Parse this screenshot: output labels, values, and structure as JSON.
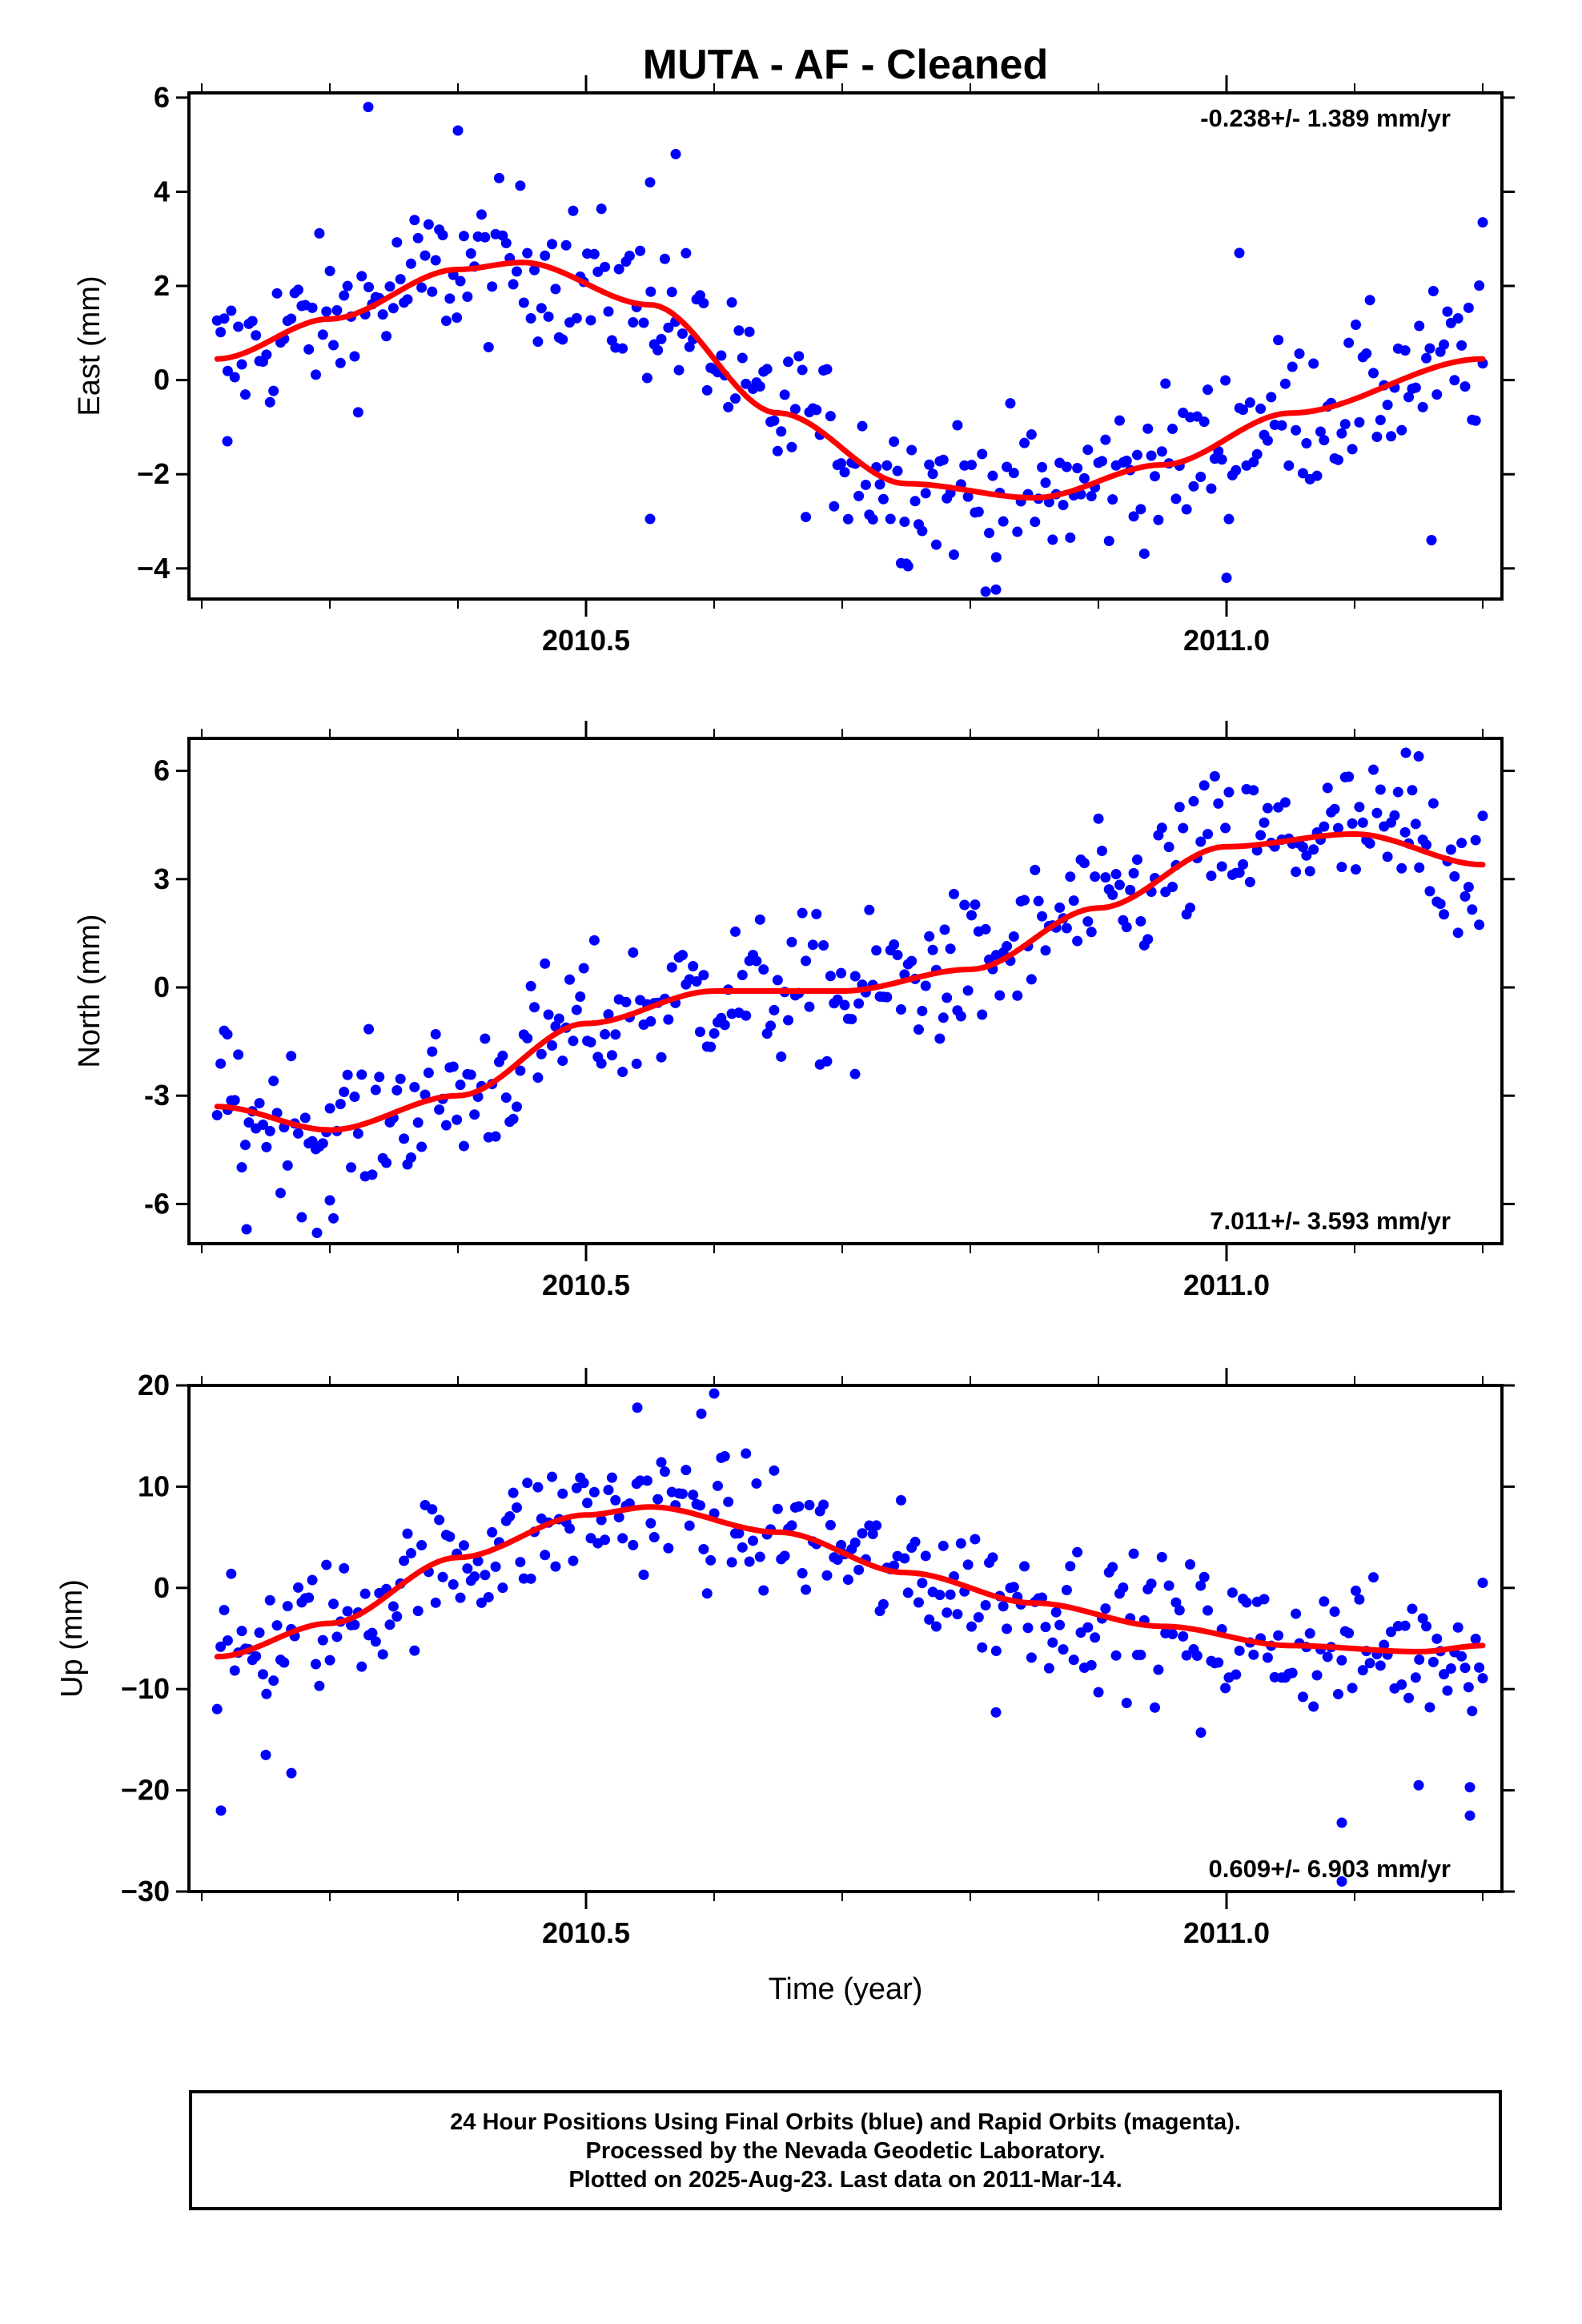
{
  "title": "MUTA  - AF - Cleaned",
  "footer": {
    "line1": "24 Hour Positions Using Final Orbits (blue) and Rapid Orbits (magenta).",
    "line2": "Processed by the Nevada Geodetic Laboratory.",
    "line3": "Plotted on 2025-Aug-23. Last data on 2011-Mar-14."
  },
  "colors": {
    "points": "#0000ff",
    "fit": "#ff0000",
    "axes": "#000000"
  },
  "chart_data": [
    {
      "type": "scatter",
      "ylabel": "East (mm)",
      "xlabel": "",
      "rate_label": "-0.238+/- 1.389 mm/yr",
      "rate_position": "top-right",
      "xlim": [
        2010.19,
        2011.215
      ],
      "ylim": [
        -4.65,
        6.1
      ],
      "xticks": [
        2010.5,
        2011.0
      ],
      "xtick_labels": [
        "2010.5",
        "2011.0"
      ],
      "yticks": [
        -4,
        -2,
        0,
        2,
        4,
        6
      ],
      "ytick_labels": [
        "−4",
        "−2",
        "0",
        "2",
        "4",
        "6"
      ],
      "x_start": 2010.212,
      "x_end": 2011.2,
      "n_points": 360,
      "fit": {
        "name": "trend",
        "x": [
          2010.212,
          2010.3,
          2010.4,
          2010.45,
          2010.55,
          2010.65,
          2010.75,
          2010.85,
          2010.95,
          2011.05,
          2011.2
        ],
        "y": [
          0.45,
          1.3,
          2.35,
          2.5,
          1.6,
          -0.7,
          -2.2,
          -2.5,
          -1.8,
          -0.7,
          0.45
        ]
      },
      "scatter_spread": 0.8,
      "outliers": [
        {
          "x": 2010.33,
          "y": 5.8
        },
        {
          "x": 2010.4,
          "y": 5.3
        },
        {
          "x": 2010.57,
          "y": 4.8
        },
        {
          "x": 2010.55,
          "y": 4.2
        },
        {
          "x": 2010.55,
          "y": -2.95
        },
        {
          "x": 2010.82,
          "y": -4.45
        },
        {
          "x": 2011.0,
          "y": -4.2
        },
        {
          "x": 2011.2,
          "y": 3.35
        },
        {
          "x": 2011.01,
          "y": 2.7
        },
        {
          "x": 2011.16,
          "y": -3.4
        },
        {
          "x": 2010.22,
          "y": -1.3
        },
        {
          "x": 2010.75,
          "y": -3.9
        }
      ]
    },
    {
      "type": "scatter",
      "ylabel": "North (mm)",
      "xlabel": "",
      "rate_label": "7.011+/- 3.593 mm/yr",
      "rate_position": "bottom-right",
      "xlim": [
        2010.19,
        2011.215
      ],
      "ylim": [
        -7.1,
        6.9
      ],
      "xticks": [
        2010.5,
        2011.0
      ],
      "xtick_labels": [
        "2010.5",
        "2011.0"
      ],
      "yticks": [
        -6,
        -3,
        0,
        3,
        6
      ],
      "ytick_labels": [
        "-6",
        "-3",
        "0",
        "3",
        "6"
      ],
      "x_start": 2010.212,
      "x_end": 2011.2,
      "n_points": 360,
      "fit": {
        "name": "trend",
        "x": [
          2010.212,
          2010.3,
          2010.4,
          2010.5,
          2010.6,
          2010.7,
          2010.8,
          2010.9,
          2011.0,
          2011.1,
          2011.2
        ],
        "y": [
          -3.3,
          -3.95,
          -3.0,
          -1.0,
          -0.1,
          -0.1,
          0.5,
          2.2,
          3.9,
          4.25,
          3.4
        ]
      },
      "scatter_spread": 1.0,
      "outliers": [
        {
          "x": 2010.235,
          "y": -6.7
        },
        {
          "x": 2010.29,
          "y": -6.8
        },
        {
          "x": 2010.3,
          "y": -5.9
        },
        {
          "x": 2011.14,
          "y": 6.5
        },
        {
          "x": 2011.15,
          "y": 6.4
        },
        {
          "x": 2010.78,
          "y": 1.6
        },
        {
          "x": 2010.22,
          "y": -1.3
        },
        {
          "x": 2010.71,
          "y": -2.4
        }
      ]
    },
    {
      "type": "scatter",
      "ylabel": "Up (mm)",
      "xlabel": "Time (year)",
      "rate_label": "0.609+/- 6.903 mm/yr",
      "rate_position": "bottom-right",
      "xlim": [
        2010.19,
        2011.215
      ],
      "ylim": [
        -30,
        20
      ],
      "xticks": [
        2010.5,
        2011.0
      ],
      "xtick_labels": [
        "2010.5",
        "2011.0"
      ],
      "yticks": [
        -30,
        -20,
        -10,
        0,
        10,
        20
      ],
      "ytick_labels": [
        "−30",
        "−20",
        "−10",
        "0",
        "10",
        "20"
      ],
      "x_start": 2010.212,
      "x_end": 2011.2,
      "n_points": 360,
      "fit": {
        "name": "trend",
        "x": [
          2010.212,
          2010.3,
          2010.4,
          2010.5,
          2010.55,
          2010.65,
          2010.75,
          2010.85,
          2010.95,
          2011.05,
          2011.15,
          2011.2
        ],
        "y": [
          -6.8,
          -3.5,
          3.0,
          7.2,
          8.0,
          5.5,
          1.5,
          -1.5,
          -3.8,
          -5.7,
          -6.3,
          -5.7
        ]
      },
      "scatter_spread": 3.2,
      "outliers": [
        {
          "x": 2010.215,
          "y": -22
        },
        {
          "x": 2010.27,
          "y": -18.3
        },
        {
          "x": 2010.25,
          "y": -16.5
        },
        {
          "x": 2010.6,
          "y": 19.2
        },
        {
          "x": 2010.59,
          "y": 17.2
        },
        {
          "x": 2010.54,
          "y": 17.8
        },
        {
          "x": 2011.09,
          "y": -23.2
        },
        {
          "x": 2011.09,
          "y": -29
        },
        {
          "x": 2011.19,
          "y": -22.5
        },
        {
          "x": 2011.19,
          "y": -19.7
        },
        {
          "x": 2011.15,
          "y": -19.5
        },
        {
          "x": 2010.82,
          "y": -12.3
        },
        {
          "x": 2010.98,
          "y": -14.3
        },
        {
          "x": 2011.2,
          "y": 0.5
        }
      ]
    }
  ]
}
